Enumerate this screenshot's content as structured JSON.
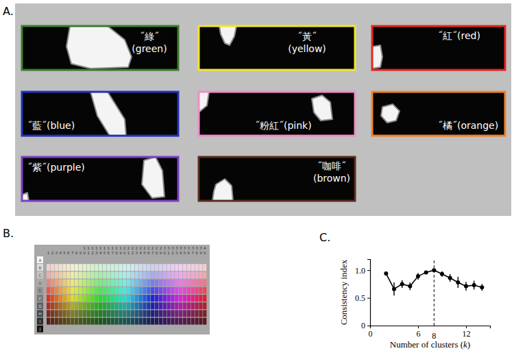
{
  "panel_labels": [
    "A.",
    "B.",
    "C."
  ],
  "color_terms": [
    {
      "term": "˝綠˝",
      "gloss": "(green)",
      "frame_color": "#3a7d2c"
    },
    {
      "term": "˝黃˝",
      "gloss": "(yellow)",
      "frame_color": "#f2e330"
    },
    {
      "term": "˝紅˝",
      "gloss": "(red)",
      "frame_color": "#e52521"
    },
    {
      "term": "˝藍˝",
      "gloss": "(blue)",
      "frame_color": "#2233bb"
    },
    {
      "term": "˝粉紅˝",
      "gloss": "(pink)",
      "frame_color": "#f08cc8"
    },
    {
      "term": "˝橘˝",
      "gloss": "(orange)",
      "frame_color": "#f0822a"
    },
    {
      "term": "˝紫˝",
      "gloss": "(purple)",
      "frame_color": "#7b3fc4"
    },
    {
      "term": "˝咖啡˝",
      "gloss": "(brown)",
      "frame_color": "#5a2d1c"
    }
  ],
  "color_chart": {
    "rows": [
      "A",
      "B",
      "C",
      "D",
      "E",
      "F",
      "G",
      "H",
      "I",
      "J"
    ],
    "columns": [
      1,
      2,
      3,
      4,
      5,
      6,
      7,
      8,
      9,
      10,
      11,
      12,
      13,
      14,
      15,
      16,
      17,
      18,
      19,
      20,
      21,
      22,
      23,
      24,
      25,
      26,
      27,
      28,
      29,
      30,
      31,
      32,
      33,
      34,
      35,
      36,
      37,
      38,
      39,
      40
    ]
  },
  "chart_data": {
    "type": "line",
    "x": [
      2,
      3,
      4,
      5,
      6,
      7,
      8,
      9,
      10,
      11,
      12,
      13,
      14
    ],
    "values": [
      0.94,
      0.66,
      0.75,
      0.71,
      0.89,
      0.96,
      1.0,
      0.93,
      0.86,
      0.78,
      0.71,
      0.73,
      0.69
    ],
    "errors": [
      0.03,
      0.12,
      0.07,
      0.07,
      0.06,
      0.03,
      0.01,
      0.05,
      0.07,
      0.1,
      0.08,
      0.08,
      0.06
    ],
    "color": "#000000",
    "marker": "circle",
    "xlim": [
      0,
      15
    ],
    "ylim": [
      0,
      1.2
    ],
    "xticks": [
      0,
      6,
      12
    ],
    "yticks": [
      0,
      0.5,
      {
        "value": 1,
        "label": "1.0"
      }
    ],
    "x_label": "Number of clusters (k)",
    "y_label": "Consistency index",
    "vline": {
      "value": 8,
      "line_style": "dashed"
    }
  }
}
